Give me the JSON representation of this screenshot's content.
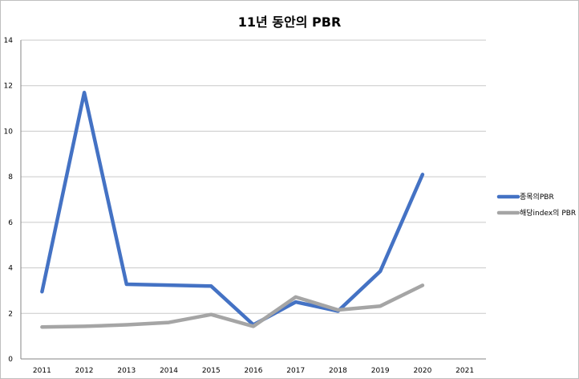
{
  "chart_data": {
    "type": "line",
    "title": "11년 동안의 PBR",
    "xlabel": "",
    "ylabel": "",
    "ylim": [
      0,
      14
    ],
    "yticks": [
      0,
      2,
      4,
      6,
      8,
      10,
      12,
      14
    ],
    "categories": [
      "2011",
      "2012",
      "2013",
      "2014",
      "2015",
      "2016",
      "2017",
      "2018",
      "2019",
      "2020",
      "2021"
    ],
    "grid": true,
    "legend_position": "right",
    "series": [
      {
        "name": "종목의PBR",
        "color": "#4472c4",
        "values": [
          2.95,
          11.7,
          3.28,
          3.24,
          3.2,
          1.5,
          2.5,
          2.1,
          3.85,
          8.1,
          null
        ]
      },
      {
        "name": "해당index의 PBR",
        "color": "#a5a5a5",
        "values": [
          1.4,
          1.43,
          1.5,
          1.6,
          1.95,
          1.43,
          2.72,
          2.15,
          2.32,
          3.23,
          null
        ]
      }
    ]
  }
}
